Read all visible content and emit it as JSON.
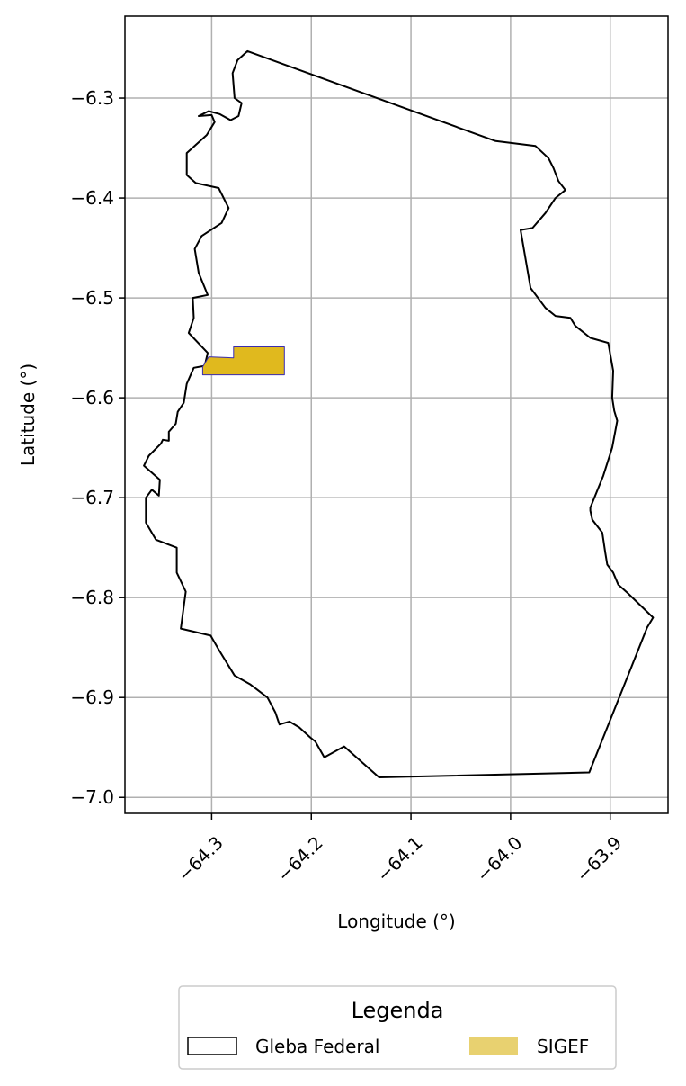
{
  "chart_data": {
    "type": "map",
    "xlabel": "Longitude (°)",
    "ylabel": "Latitude (°)",
    "xlim": [
      -64.387,
      -63.842
    ],
    "ylim": [
      -7.016,
      -6.218
    ],
    "xticks": [
      -64.3,
      -64.2,
      -64.1,
      -64.0,
      -63.9
    ],
    "xtick_labels": [
      "−64.3",
      "−64.2",
      "−64.1",
      "−64.0",
      "−63.9"
    ],
    "yticks": [
      -6.3,
      -6.4,
      -6.5,
      -6.6,
      -6.7,
      -6.8,
      -6.9,
      -7.0
    ],
    "ytick_labels": [
      "−6.3",
      "−6.4",
      "−6.5",
      "−6.6",
      "−6.7",
      "−6.8",
      "−6.9",
      "−7.0"
    ],
    "grid": true,
    "legend": {
      "title": "Legenda",
      "placement": "bottom-center",
      "entries": [
        {
          "label": "Gleba Federal",
          "style": "outline",
          "color": "#000000"
        },
        {
          "label": "SIGEF",
          "style": "fill",
          "color": "#e8d170"
        }
      ]
    },
    "layers": [
      {
        "name": "Gleba Federal",
        "stroke": "#000000",
        "fill": "none",
        "coordinates": [
          [
            -64.264,
            -6.253
          ],
          [
            -64.274,
            -6.262
          ],
          [
            -64.279,
            -6.275
          ],
          [
            -64.277,
            -6.3
          ],
          [
            -64.27,
            -6.305
          ],
          [
            -64.273,
            -6.318
          ],
          [
            -64.281,
            -6.322
          ],
          [
            -64.292,
            -6.316
          ],
          [
            -64.303,
            -6.313
          ],
          [
            -64.313,
            -6.318
          ],
          [
            -64.3,
            -6.317
          ],
          [
            -64.297,
            -6.324
          ],
          [
            -64.305,
            -6.337
          ],
          [
            -64.325,
            -6.355
          ],
          [
            -64.325,
            -6.377
          ],
          [
            -64.316,
            -6.385
          ],
          [
            -64.293,
            -6.39
          ],
          [
            -64.283,
            -6.41
          ],
          [
            -64.29,
            -6.425
          ],
          [
            -64.31,
            -6.438
          ],
          [
            -64.317,
            -6.451
          ],
          [
            -64.313,
            -6.475
          ],
          [
            -64.304,
            -6.497
          ],
          [
            -64.319,
            -6.5
          ],
          [
            -64.318,
            -6.52
          ],
          [
            -64.323,
            -6.535
          ],
          [
            -64.304,
            -6.555
          ],
          [
            -64.307,
            -6.568
          ],
          [
            -64.318,
            -6.57
          ],
          [
            -64.325,
            -6.586
          ],
          [
            -64.328,
            -6.605
          ],
          [
            -64.334,
            -6.614
          ],
          [
            -64.336,
            -6.626
          ],
          [
            -64.343,
            -6.634
          ],
          [
            -64.343,
            -6.643
          ],
          [
            -64.349,
            -6.642
          ],
          [
            -64.351,
            -6.646
          ],
          [
            -64.363,
            -6.658
          ],
          [
            -64.368,
            -6.668
          ],
          [
            -64.352,
            -6.682
          ],
          [
            -64.353,
            -6.698
          ],
          [
            -64.36,
            -6.692
          ],
          [
            -64.366,
            -6.7
          ],
          [
            -64.366,
            -6.725
          ],
          [
            -64.356,
            -6.742
          ],
          [
            -64.335,
            -6.75
          ],
          [
            -64.335,
            -6.775
          ],
          [
            -64.326,
            -6.794
          ],
          [
            -64.331,
            -6.831
          ],
          [
            -64.301,
            -6.838
          ],
          [
            -64.293,
            -6.852
          ],
          [
            -64.277,
            -6.878
          ],
          [
            -64.261,
            -6.887
          ],
          [
            -64.244,
            -6.9
          ],
          [
            -64.236,
            -6.915
          ],
          [
            -64.232,
            -6.927
          ],
          [
            -64.222,
            -6.924
          ],
          [
            -64.212,
            -6.93
          ],
          [
            -64.201,
            -6.94
          ],
          [
            -64.196,
            -6.944
          ],
          [
            -64.187,
            -6.96
          ],
          [
            -64.167,
            -6.949
          ],
          [
            -64.132,
            -6.98
          ],
          [
            -63.921,
            -6.975
          ],
          [
            -63.881,
            -6.875
          ],
          [
            -63.863,
            -6.83
          ],
          [
            -63.857,
            -6.82
          ],
          [
            -63.883,
            -6.795
          ],
          [
            -63.892,
            -6.787
          ],
          [
            -63.897,
            -6.775
          ],
          [
            -63.903,
            -6.767
          ],
          [
            -63.905,
            -6.755
          ],
          [
            -63.908,
            -6.735
          ],
          [
            -63.918,
            -6.722
          ],
          [
            -63.92,
            -6.713
          ],
          [
            -63.92,
            -6.71
          ],
          [
            -63.907,
            -6.678
          ],
          [
            -63.898,
            -6.65
          ],
          [
            -63.893,
            -6.623
          ],
          [
            -63.896,
            -6.613
          ],
          [
            -63.898,
            -6.6
          ],
          [
            -63.897,
            -6.573
          ],
          [
            -63.902,
            -6.545
          ],
          [
            -63.92,
            -6.54
          ],
          [
            -63.935,
            -6.528
          ],
          [
            -63.94,
            -6.52
          ],
          [
            -63.955,
            -6.518
          ],
          [
            -63.965,
            -6.51
          ],
          [
            -63.98,
            -6.49
          ],
          [
            -63.99,
            -6.432
          ],
          [
            -63.978,
            -6.43
          ],
          [
            -63.965,
            -6.415
          ],
          [
            -63.955,
            -6.4
          ],
          [
            -63.945,
            -6.392
          ],
          [
            -63.952,
            -6.383
          ],
          [
            -63.957,
            -6.37
          ],
          [
            -63.962,
            -6.36
          ],
          [
            -63.975,
            -6.348
          ],
          [
            -64.015,
            -6.343
          ],
          [
            -64.264,
            -6.253
          ]
        ]
      },
      {
        "name": "SIGEF",
        "stroke": "#3a2cb0",
        "fill": "#e0b91e",
        "coordinates": [
          [
            -64.309,
            -6.569
          ],
          [
            -64.303,
            -6.559
          ],
          [
            -64.278,
            -6.56
          ],
          [
            -64.278,
            -6.549
          ],
          [
            -64.227,
            -6.549
          ],
          [
            -64.227,
            -6.577
          ],
          [
            -64.309,
            -6.577
          ],
          [
            -64.309,
            -6.569
          ]
        ]
      }
    ]
  }
}
